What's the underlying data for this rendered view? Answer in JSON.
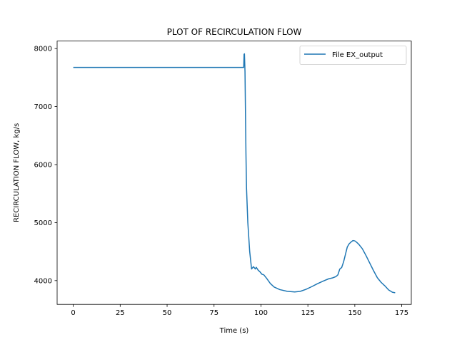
{
  "chart_data": {
    "type": "line",
    "title": "PLOT OF RECIRCULATION FLOW",
    "xlabel": "Time (s)",
    "ylabel": "RECIRCULATION FLOW, kg/s",
    "xlim": [
      -8.6,
      180.1
    ],
    "ylim": [
      3590,
      8130
    ],
    "xticks": [
      0,
      25,
      50,
      75,
      100,
      125,
      150,
      175
    ],
    "yticks": [
      4000,
      5000,
      6000,
      7000,
      8000
    ],
    "grid": false,
    "legend_position": "top-right",
    "color": "#1f77b4",
    "series": [
      {
        "name": "File EX_output",
        "points": [
          [
            0,
            7675
          ],
          [
            30,
            7675
          ],
          [
            60,
            7675
          ],
          [
            90.8,
            7675
          ],
          [
            91.0,
            7900
          ],
          [
            91.2,
            7910
          ],
          [
            91.5,
            7600
          ],
          [
            92.0,
            6200
          ],
          [
            92.3,
            5600
          ],
          [
            93.0,
            5000
          ],
          [
            94.0,
            4500
          ],
          [
            95.0,
            4200
          ],
          [
            96.0,
            4240
          ],
          [
            97.0,
            4200
          ],
          [
            97.5,
            4230
          ],
          [
            98.5,
            4180
          ],
          [
            99.5,
            4150
          ],
          [
            100.5,
            4110
          ],
          [
            101.5,
            4100
          ],
          [
            103,
            4040
          ],
          [
            105,
            3950
          ],
          [
            107,
            3890
          ],
          [
            110,
            3845
          ],
          [
            114,
            3815
          ],
          [
            118,
            3805
          ],
          [
            121,
            3815
          ],
          [
            124,
            3850
          ],
          [
            127,
            3895
          ],
          [
            130,
            3945
          ],
          [
            133,
            3990
          ],
          [
            136,
            4030
          ],
          [
            138,
            4045
          ],
          [
            140,
            4070
          ],
          [
            141,
            4100
          ],
          [
            142,
            4200
          ],
          [
            143,
            4225
          ],
          [
            144,
            4320
          ],
          [
            145,
            4450
          ],
          [
            146,
            4580
          ],
          [
            147,
            4635
          ],
          [
            148,
            4665
          ],
          [
            149,
            4690
          ],
          [
            150,
            4685
          ],
          [
            151,
            4660
          ],
          [
            152,
            4630
          ],
          [
            154,
            4550
          ],
          [
            156,
            4430
          ],
          [
            158,
            4300
          ],
          [
            160,
            4170
          ],
          [
            162,
            4050
          ],
          [
            164,
            3970
          ],
          [
            166,
            3910
          ],
          [
            168,
            3840
          ],
          [
            170,
            3800
          ],
          [
            171.5,
            3790
          ]
        ]
      }
    ]
  }
}
